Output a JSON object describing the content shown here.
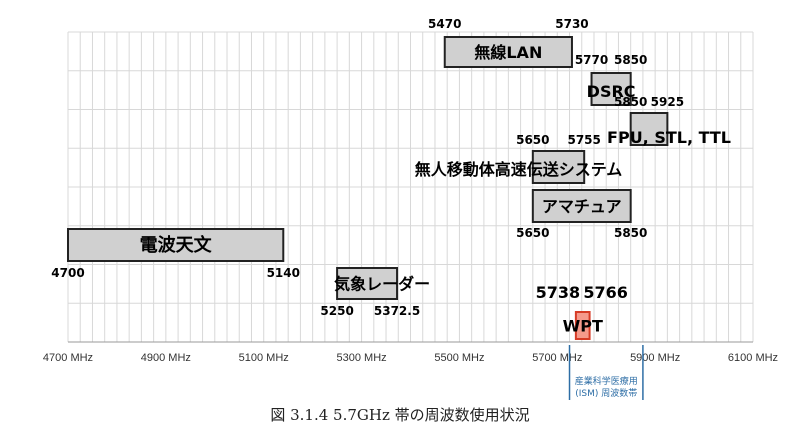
{
  "chart_data": {
    "type": "bar",
    "subtype": "frequency-allocation",
    "x_unit": "MHz",
    "xlim": [
      4700,
      6100
    ],
    "x_ticks": [
      {
        "value": 4700,
        "label": "4700 MHz"
      },
      {
        "value": 4900,
        "label": "4900 MHz"
      },
      {
        "value": 5100,
        "label": "5100 MHz"
      },
      {
        "value": 5300,
        "label": "5300 MHz"
      },
      {
        "value": 5500,
        "label": "5500 MHz"
      },
      {
        "value": 5700,
        "label": "5700 MHz"
      },
      {
        "value": 5900,
        "label": "5900 MHz"
      },
      {
        "value": 6100,
        "label": "6100 MHz"
      }
    ],
    "grid": true,
    "bands": [
      {
        "name": "無線LAN",
        "start": 5470,
        "end": 5730,
        "start_label": "5470",
        "end_label": "5730",
        "row": 0,
        "color": "#d0d0d0"
      },
      {
        "name": "DSRC",
        "start": 5770,
        "end": 5850,
        "start_label": "5770",
        "end_label": "5850",
        "row": 1,
        "color": "#d0d0d0"
      },
      {
        "name": "FPU, STL, TTL",
        "start": 5850,
        "end": 5925,
        "start_label": "5850",
        "end_label": "5925",
        "row": 2,
        "color": "#d0d0d0"
      },
      {
        "name": "無人移動体高速伝送システム",
        "start": 5650,
        "end": 5755,
        "start_label": "5650",
        "end_label": "5755",
        "row": 3,
        "color": "#d0d0d0"
      },
      {
        "name": "アマチュア",
        "start": 5650,
        "end": 5850,
        "start_label": "5650",
        "end_label": "5850",
        "row": 4,
        "color": "#d0d0d0"
      },
      {
        "name": "電波天文",
        "start": 4700,
        "end": 5140,
        "start_label": "4700",
        "end_label": "5140",
        "row": 5,
        "color": "#d0d0d0"
      },
      {
        "name": "気象レーダー",
        "start": 5250,
        "end": 5372.5,
        "start_label": "5250",
        "end_label": "5372.5",
        "row": 6,
        "color": "#d0d0d0"
      },
      {
        "name": "WPT",
        "start": 5738,
        "end": 5766,
        "start_label": "5738",
        "end_label": "5766",
        "row": 7,
        "color": "#f59a8c"
      }
    ],
    "ism_band": {
      "start": 5725,
      "end": 5875,
      "label_line1": "産業科学医療用",
      "label_line2": "(ISM) 周波数帯",
      "color": "#2e6ea6"
    }
  },
  "caption": "図 3.1.4  5.7GHz 帯の周波数使用状況"
}
